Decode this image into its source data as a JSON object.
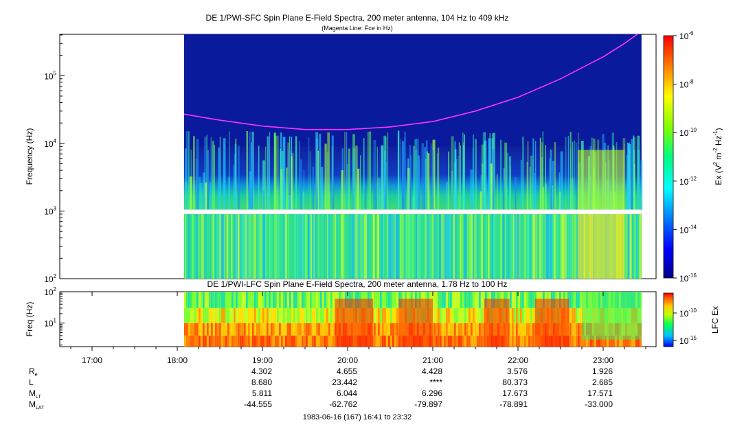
{
  "colors": {
    "spectrum_background": "#0a1a9c",
    "fce_line": "#ff33ff",
    "gap": "#ffffff"
  },
  "chart_data": [
    {
      "type": "heatmap",
      "title": "DE 1/PWI-SFC  Spin Plane E-Field Spectra, 200 meter antenna, 104 Hz to 409 kHz",
      "subtitle": "(Magenta Line: Fce in Hz)",
      "ylabel": "Frequency (Hz)",
      "y_scale": "log",
      "ylim": [
        100,
        409000
      ],
      "y_ticks": [
        100,
        1000,
        10000,
        100000
      ],
      "y_tick_labels": [
        {
          "base": "10",
          "exp": "2"
        },
        {
          "base": "10",
          "exp": "3"
        },
        {
          "base": "10",
          "exp": "4"
        },
        {
          "base": "10",
          "exp": "5"
        }
      ],
      "x_range_hours": [
        16.683,
        23.533
      ],
      "data_start_hour": 18.08,
      "data_end_hour": 23.45,
      "gap_hz": [
        900,
        1050
      ],
      "fce_line": {
        "x": [
          18.08,
          18.5,
          19.0,
          19.5,
          20.0,
          20.5,
          21.0,
          21.5,
          22.0,
          22.5,
          23.0,
          23.25,
          23.4
        ],
        "y": [
          27000,
          22000,
          18000,
          16000,
          16000,
          17500,
          21000,
          30000,
          48000,
          90000,
          190000,
          300000,
          409000
        ]
      },
      "colorbar": {
        "label": "Ex (V² m⁻² Hz⁻¹)",
        "label_parts": {
          "pre": "Ex (V",
          "sup1": "2",
          "mid1": " m",
          "sup2": "-2",
          "mid2": " Hz",
          "sup3": "-1",
          "post": ")"
        },
        "scale": "log",
        "range": [
          1e-16,
          1e-06
        ],
        "ticks": [
          {
            "base": "10",
            "exp": "-6"
          },
          {
            "base": "10",
            "exp": "-8"
          },
          {
            "base": "10",
            "exp": "-10"
          },
          {
            "base": "10",
            "exp": "-12"
          },
          {
            "base": "10",
            "exp": "-14"
          },
          {
            "base": "10",
            "exp": "-16"
          }
        ]
      }
    },
    {
      "type": "heatmap",
      "title": "DE 1/PWI-LFC  Spin Plane E-Field Spectra, 200 meter antenna, 1.78 Hz to 100 Hz",
      "ylabel": "Freq (Hz)",
      "y_scale": "log",
      "ylim": [
        1.78,
        100
      ],
      "y_ticks": [
        10,
        100
      ],
      "y_tick_labels": [
        {
          "base": "10",
          "exp": "1"
        },
        {
          "base": "10",
          "exp": "2"
        }
      ],
      "data_start_hour": 18.08,
      "data_end_hour": 23.45,
      "colorbar": {
        "label": "LFC Ex",
        "scale": "log",
        "ticks": [
          {
            "base": "10",
            "exp": "-10"
          },
          {
            "base": "10",
            "exp": "-15"
          }
        ]
      }
    }
  ],
  "time_axis": {
    "ticks": [
      "17:00",
      "18:00",
      "19:00",
      "20:00",
      "21:00",
      "22:00",
      "23:00"
    ],
    "tick_hours": [
      17,
      18,
      19,
      20,
      21,
      22,
      23
    ],
    "range_label": "1983-06-16 (167) 16:41 to 23:32"
  },
  "ephemeris": [
    {
      "label": "R",
      "sub": "e",
      "values": [
        "4.302",
        "4.655",
        "4.428",
        "3.576",
        "1.926"
      ]
    },
    {
      "label": "L",
      "sub": "",
      "values": [
        "8.680",
        "23.442",
        "****",
        "80.373",
        "2.685"
      ]
    },
    {
      "label": "M",
      "sub": "LT",
      "values": [
        "5.811",
        "6.044",
        "6.296",
        "17.673",
        "17.571"
      ]
    },
    {
      "label": "M",
      "sub": "LAT",
      "values": [
        "-44.555",
        "-62.762",
        "-79.897",
        "-78.891",
        "-33.000"
      ]
    }
  ],
  "ephemeris_hours": [
    19,
    20,
    21,
    22,
    23
  ]
}
